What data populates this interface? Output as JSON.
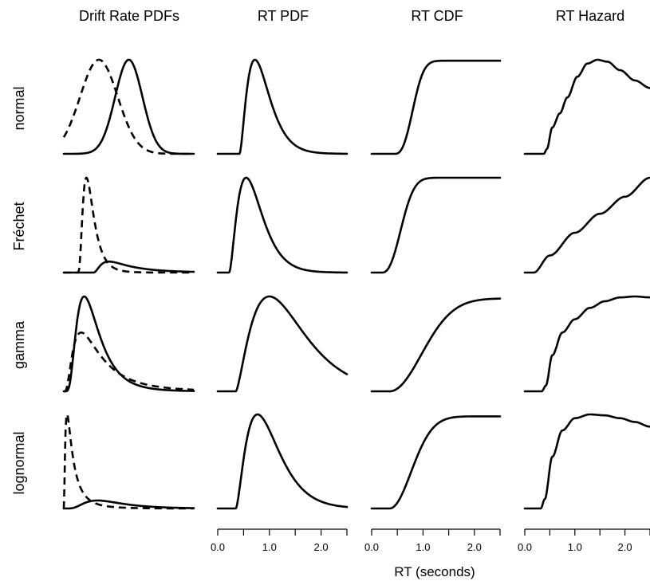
{
  "chart_data": {
    "type": "line",
    "layout": "small-multiples grid",
    "column_titles": [
      "Drift Rate PDFs",
      "RT PDF",
      "RT CDF",
      "RT Hazard"
    ],
    "row_labels": [
      "normal",
      "Fréchet",
      "gamma",
      "lognormal"
    ],
    "xlabel": "RT (seconds)",
    "x_axis": {
      "xlim": [
        0,
        2.5
      ],
      "ticks": [
        0.0,
        0.5,
        1.0,
        1.5,
        2.0,
        2.5
      ],
      "tick_labels": [
        {
          "value": 0.0,
          "label": "0.0"
        },
        {
          "value": 1.0,
          "label": "1.0"
        },
        {
          "value": 2.0,
          "label": "2.0"
        }
      ],
      "shown_under_columns": [
        "RT PDF",
        "RT CDF",
        "RT Hazard"
      ]
    },
    "drift_rate_series_styles": [
      "solid",
      "dashed"
    ],
    "distributions": {
      "normal": {
        "drift_rate_pdfs": {
          "solid": {
            "kind": "gaussian",
            "mu": 0.5,
            "sigma": 0.105
          },
          "dashed": {
            "kind": "gaussian",
            "mu": 0.27,
            "sigma": 0.145
          }
        },
        "rt_pdf": {
          "shift": 0.42,
          "peak": 0.78,
          "width": 0.3,
          "skew": 0.55
        },
        "rt_cdf": {
          "shift": 0.45,
          "steepness": 2.4,
          "power": 2.6,
          "max": 0.99
        },
        "rt_hazard": {
          "points": [
            [
              0.0,
              0.0
            ],
            [
              0.38,
              0.0
            ],
            [
              0.44,
              0.05
            ],
            [
              0.55,
              0.28
            ],
            [
              0.7,
              0.43
            ],
            [
              0.85,
              0.6
            ],
            [
              1.05,
              0.82
            ],
            [
              1.25,
              0.96
            ],
            [
              1.45,
              1.0
            ],
            [
              1.65,
              0.98
            ],
            [
              1.9,
              0.89
            ],
            [
              2.2,
              0.78
            ],
            [
              2.5,
              0.7
            ]
          ]
        }
      },
      "Fréchet": {
        "drift_rate_pdfs": {
          "solid": {
            "kind": "lognormal",
            "shift": 0.22,
            "mu": -1.45,
            "sigma": 0.78,
            "scale": 0.33
          },
          "dashed": {
            "kind": "lognormal",
            "shift": 0.1,
            "mu": -2.3,
            "sigma": 0.55,
            "scale": 1.0
          }
        },
        "rt_pdf": {
          "shift": 0.22,
          "peak": 0.62,
          "width": 0.33,
          "skew": 0.55
        },
        "rt_cdf": {
          "shift": 0.2,
          "steepness": 2.2,
          "power": 2.4,
          "max": 1.0
        },
        "rt_hazard": {
          "points": [
            [
              0.0,
              0.0
            ],
            [
              0.18,
              0.0
            ],
            [
              0.5,
              0.18
            ],
            [
              1.0,
              0.42
            ],
            [
              1.5,
              0.62
            ],
            [
              2.0,
              0.8
            ],
            [
              2.5,
              1.0
            ]
          ]
        }
      },
      "gamma": {
        "drift_rate_pdfs": {
          "solid": {
            "kind": "lognormal",
            "shift": 0.0,
            "mu": -1.55,
            "sigma": 0.55,
            "scale": 1.0
          },
          "dashed": {
            "kind": "lognormal",
            "shift": 0.0,
            "mu": -1.45,
            "sigma": 0.75,
            "scale": 0.82
          }
        },
        "rt_pdf": {
          "shift": 0.35,
          "peak": 0.86,
          "width": 0.65,
          "skew": 0.65
        },
        "rt_cdf": {
          "shift": 0.35,
          "steepness": 1.15,
          "power": 2.0,
          "max": 0.98
        },
        "rt_hazard": {
          "points": [
            [
              0.0,
              0.0
            ],
            [
              0.34,
              0.0
            ],
            [
              0.42,
              0.06
            ],
            [
              0.55,
              0.38
            ],
            [
              0.75,
              0.62
            ],
            [
              1.0,
              0.76
            ],
            [
              1.3,
              0.88
            ],
            [
              1.6,
              0.95
            ],
            [
              1.9,
              0.99
            ],
            [
              2.2,
              1.0
            ],
            [
              2.5,
              0.99
            ]
          ]
        }
      },
      "lognormal": {
        "drift_rate_pdfs": {
          "solid": {
            "kind": "lognormal",
            "shift": 0.0,
            "mu": -1.05,
            "sigma": 0.55,
            "scale": 0.38
          },
          "dashed": {
            "kind": "lognormal",
            "shift": 0.0,
            "mu": -2.8,
            "sigma": 0.95,
            "scale": 1.0
          }
        },
        "rt_pdf": {
          "shift": 0.35,
          "peak": 0.7,
          "width": 0.42,
          "skew": 0.6
        },
        "rt_cdf": {
          "shift": 0.35,
          "steepness": 1.7,
          "power": 2.0,
          "max": 0.98
        },
        "rt_hazard": {
          "points": [
            [
              0.0,
              0.0
            ],
            [
              0.32,
              0.0
            ],
            [
              0.4,
              0.1
            ],
            [
              0.55,
              0.55
            ],
            [
              0.75,
              0.83
            ],
            [
              1.0,
              0.96
            ],
            [
              1.3,
              1.0
            ],
            [
              1.6,
              0.99
            ],
            [
              1.9,
              0.96
            ],
            [
              2.2,
              0.92
            ],
            [
              2.5,
              0.87
            ]
          ]
        }
      }
    }
  }
}
